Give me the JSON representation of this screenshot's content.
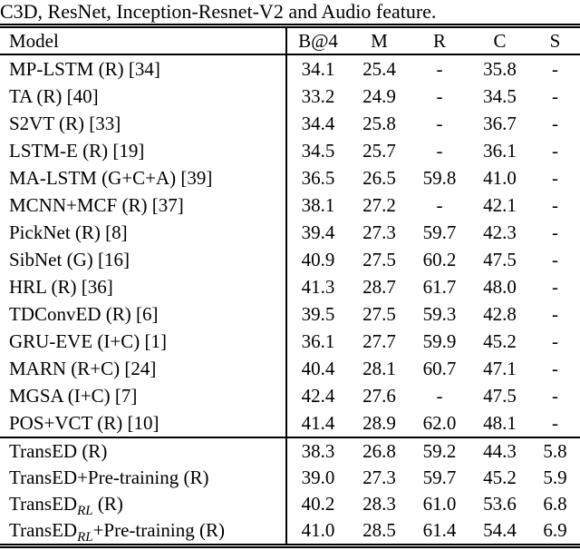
{
  "caption": "C3D, ResNet, Inception-Resnet-V2 and Audio feature.",
  "colors": {
    "text": "#000000",
    "background": "#ffffff",
    "rule": "#000000"
  },
  "table": {
    "columns": [
      "Model",
      "B@4",
      "M",
      "R",
      "C",
      "S"
    ],
    "groups": [
      {
        "rows": [
          {
            "model": {
              "pre": "MP-LSTM (R) [34]",
              "sub": "",
              "post": ""
            },
            "values": [
              "34.1",
              "25.4",
              "-",
              "35.8",
              "-"
            ]
          },
          {
            "model": {
              "pre": "TA (R) [40]",
              "sub": "",
              "post": ""
            },
            "values": [
              "33.2",
              "24.9",
              "-",
              "34.5",
              "-"
            ]
          },
          {
            "model": {
              "pre": "S2VT (R) [33]",
              "sub": "",
              "post": ""
            },
            "values": [
              "34.4",
              "25.8",
              "-",
              "36.7",
              "-"
            ]
          },
          {
            "model": {
              "pre": "LSTM-E (R) [19]",
              "sub": "",
              "post": ""
            },
            "values": [
              "34.5",
              "25.7",
              "-",
              "36.1",
              "-"
            ]
          },
          {
            "model": {
              "pre": "MA-LSTM (G+C+A) [39]",
              "sub": "",
              "post": ""
            },
            "values": [
              "36.5",
              "26.5",
              "59.8",
              "41.0",
              "-"
            ]
          },
          {
            "model": {
              "pre": "MCNN+MCF (R) [37]",
              "sub": "",
              "post": ""
            },
            "values": [
              "38.1",
              "27.2",
              "-",
              "42.1",
              "-"
            ]
          },
          {
            "model": {
              "pre": "PickNet (R) [8]",
              "sub": "",
              "post": ""
            },
            "values": [
              "39.4",
              "27.3",
              "59.7",
              "42.3",
              "-"
            ]
          },
          {
            "model": {
              "pre": "SibNet (G) [16]",
              "sub": "",
              "post": ""
            },
            "values": [
              "40.9",
              "27.5",
              "60.2",
              "47.5",
              "-"
            ]
          },
          {
            "model": {
              "pre": "HRL (R) [36]",
              "sub": "",
              "post": ""
            },
            "values": [
              "41.3",
              "28.7",
              "61.7",
              "48.0",
              "-"
            ]
          },
          {
            "model": {
              "pre": "TDConvED (R) [6]",
              "sub": "",
              "post": ""
            },
            "values": [
              "39.5",
              "27.5",
              "59.3",
              "42.8",
              "-"
            ]
          },
          {
            "model": {
              "pre": "GRU-EVE (I+C) [1]",
              "sub": "",
              "post": ""
            },
            "values": [
              "36.1",
              "27.7",
              "59.9",
              "45.2",
              "-"
            ]
          },
          {
            "model": {
              "pre": "MARN (R+C) [24]",
              "sub": "",
              "post": ""
            },
            "values": [
              "40.4",
              "28.1",
              "60.7",
              "47.1",
              "-"
            ]
          },
          {
            "model": {
              "pre": "MGSA (I+C) [7]",
              "sub": "",
              "post": ""
            },
            "values": [
              "42.4",
              "27.6",
              "-",
              "47.5",
              "-"
            ]
          },
          {
            "model": {
              "pre": "POS+VCT (R) [10]",
              "sub": "",
              "post": ""
            },
            "values": [
              "41.4",
              "28.9",
              "62.0",
              "48.1",
              "-"
            ]
          }
        ]
      },
      {
        "rows": [
          {
            "model": {
              "pre": "TransED (R)",
              "sub": "",
              "post": ""
            },
            "values": [
              "38.3",
              "26.8",
              "59.2",
              "44.3",
              "5.8"
            ]
          },
          {
            "model": {
              "pre": "TransED+Pre-training (R)",
              "sub": "",
              "post": ""
            },
            "values": [
              "39.0",
              "27.3",
              "59.7",
              "45.2",
              "5.9"
            ]
          },
          {
            "model": {
              "pre": "TransED",
              "sub": "RL",
              "post": " (R)"
            },
            "values": [
              "40.2",
              "28.3",
              "61.0",
              "53.6",
              "6.8"
            ]
          },
          {
            "model": {
              "pre": "TransED",
              "sub": "RL",
              "post": "+Pre-training (R)"
            },
            "values": [
              "41.0",
              "28.5",
              "61.4",
              "54.4",
              "6.9"
            ]
          }
        ]
      }
    ]
  }
}
